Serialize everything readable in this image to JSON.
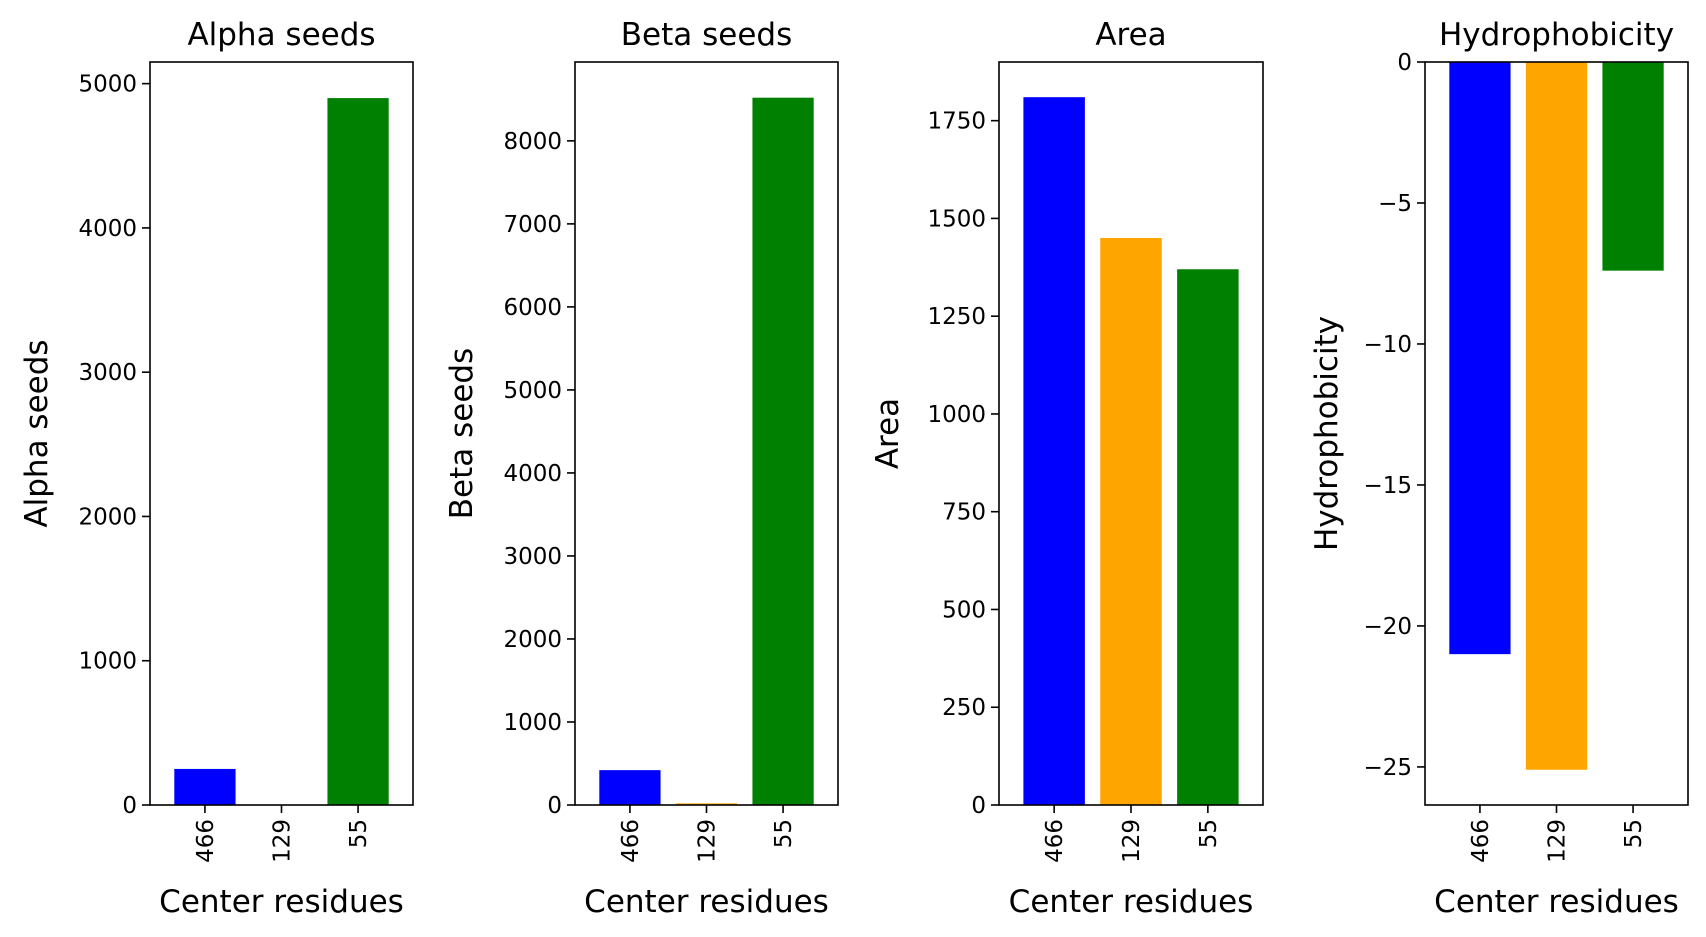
{
  "chart_data": [
    {
      "type": "bar",
      "title": "Alpha seeds",
      "xlabel": "Center residues",
      "ylabel": "Alpha seeds",
      "categories": [
        "466",
        "129",
        "55"
      ],
      "values": [
        250,
        0,
        4900
      ],
      "colors": [
        "#0000ff",
        "#ffa500",
        "#008000"
      ],
      "ylim": [
        0,
        5150
      ],
      "yticks": [
        0,
        1000,
        2000,
        3000,
        4000,
        5000
      ],
      "ytick_labels": [
        "0",
        "1000",
        "2000",
        "3000",
        "4000",
        "5000"
      ]
    },
    {
      "type": "bar",
      "title": "Beta seeds",
      "xlabel": "Center residues",
      "ylabel": "Beta seeds",
      "categories": [
        "466",
        "129",
        "55"
      ],
      "values": [
        420,
        20,
        8520
      ],
      "colors": [
        "#0000ff",
        "#ffa500",
        "#008000"
      ],
      "ylim": [
        0,
        8950
      ],
      "yticks": [
        0,
        1000,
        2000,
        3000,
        4000,
        5000,
        6000,
        7000,
        8000
      ],
      "ytick_labels": [
        "0",
        "1000",
        "2000",
        "3000",
        "4000",
        "5000",
        "6000",
        "7000",
        "8000"
      ]
    },
    {
      "type": "bar",
      "title": "Area",
      "xlabel": "Center residues",
      "ylabel": "Area",
      "categories": [
        "466",
        "129",
        "55"
      ],
      "values": [
        1810,
        1450,
        1370
      ],
      "colors": [
        "#0000ff",
        "#ffa500",
        "#008000"
      ],
      "ylim": [
        0,
        1900
      ],
      "yticks": [
        0,
        250,
        500,
        750,
        1000,
        1250,
        1500,
        1750
      ],
      "ytick_labels": [
        "0",
        "250",
        "500",
        "750",
        "1000",
        "1250",
        "1500",
        "1750"
      ]
    },
    {
      "type": "bar",
      "title": "Hydrophobicity",
      "xlabel": "Center residues",
      "ylabel": "Hydrophobicity",
      "categories": [
        "466",
        "129",
        "55"
      ],
      "values": [
        -21.0,
        -25.1,
        -7.4
      ],
      "colors": [
        "#0000ff",
        "#ffa500",
        "#008000"
      ],
      "ylim": [
        -26.35,
        0
      ],
      "yticks": [
        0,
        -5,
        -10,
        -15,
        -20,
        -25
      ],
      "ytick_labels": [
        "0",
        "−5",
        "−10",
        "−15",
        "−20",
        "−25"
      ]
    }
  ]
}
